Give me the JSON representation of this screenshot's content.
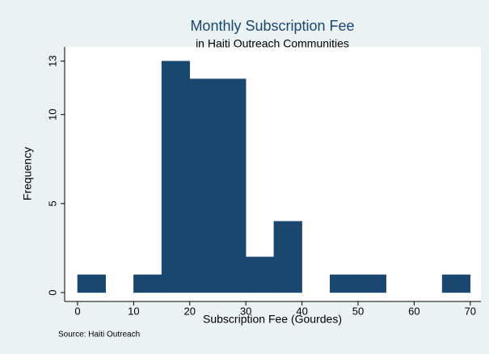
{
  "chart_data": {
    "type": "histogram",
    "title": "Monthly Subscription Fee",
    "subtitle": "in Haiti Outreach Communities",
    "x_label": "Subscription Fee (Gourdes)",
    "y_label": "Frequency",
    "note": "Source: Haiti Outreach",
    "bins": [
      0,
      5,
      10,
      15,
      20,
      25,
      30,
      35,
      40,
      45,
      50,
      55,
      60,
      65,
      70
    ],
    "values": [
      1,
      0,
      1,
      13,
      12,
      12,
      2,
      4,
      0,
      1,
      1,
      0,
      0,
      1
    ],
    "color": "#1a476f",
    "xlim": [
      -2.3,
      71.9
    ],
    "ylim": [
      -0.5,
      13.8
    ],
    "xticks": [
      0,
      10,
      20,
      30,
      40,
      50,
      60,
      70
    ],
    "yticks": [
      0,
      5,
      10,
      13
    ],
    "grid": false
  }
}
